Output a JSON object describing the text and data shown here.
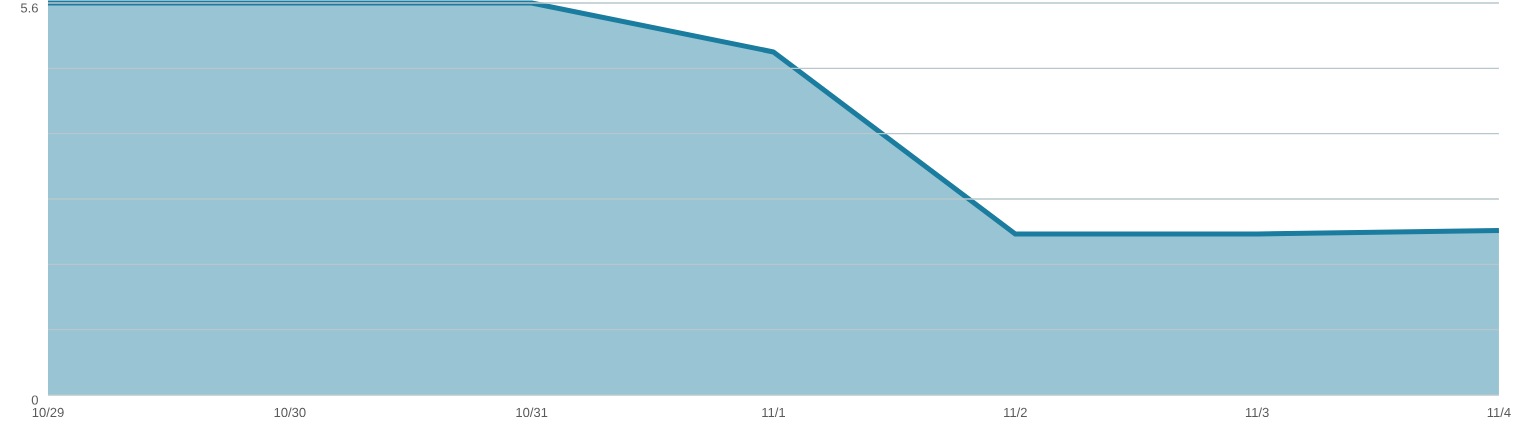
{
  "chart_data": {
    "type": "area",
    "categories": [
      "10/29",
      "10/30",
      "10/31",
      "11/1",
      "11/2",
      "11/3",
      "11/4"
    ],
    "series": [
      {
        "color": "#1a7c9e",
        "values": [
          5.6,
          5.6,
          5.6,
          4.9,
          2.3,
          2.3,
          2.35
        ]
      }
    ],
    "ylim": [
      0,
      5.6
    ],
    "yticks": [
      0,
      {
        "value": 0.9333,
        "label": null
      },
      {
        "value": 1.8667,
        "label": null
      },
      {
        "value": 2.8,
        "label": null
      },
      {
        "value": 3.7333,
        "label": null
      },
      {
        "value": 4.6667,
        "label": null
      },
      5.6
    ],
    "grid": "y"
  }
}
